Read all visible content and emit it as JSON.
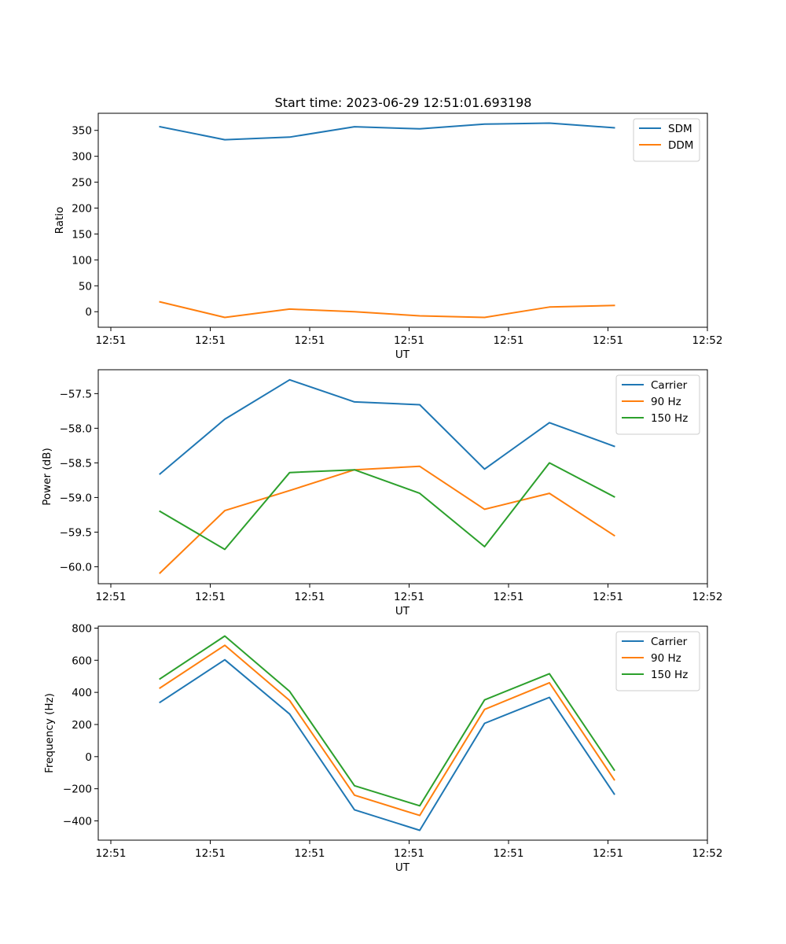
{
  "title": "Start time: 2023-06-29 12:51:01.693198",
  "chart_data": [
    {
      "type": "line",
      "xlabel": "UT",
      "ylabel": "Ratio",
      "xticks": [
        "12:51",
        "12:51",
        "12:51",
        "12:51",
        "12:51",
        "12:51",
        "12:52"
      ],
      "yticks": [
        "0",
        "50",
        "100",
        "150",
        "200",
        "250",
        "300",
        "350"
      ],
      "ylim": [
        -30,
        383
      ],
      "legend_position": "upper-right",
      "series": [
        {
          "name": "SDM",
          "color": "#1f77b4",
          "values": [
            357,
            332,
            337,
            357,
            353,
            362,
            364,
            355
          ]
        },
        {
          "name": "DDM",
          "color": "#ff7f0e",
          "values": [
            19,
            -11,
            5,
            0,
            -8,
            -11,
            9,
            12
          ]
        }
      ]
    },
    {
      "type": "line",
      "xlabel": "UT",
      "ylabel": "Power (dB)",
      "xticks": [
        "12:51",
        "12:51",
        "12:51",
        "12:51",
        "12:51",
        "12:51",
        "12:52"
      ],
      "yticks": [
        "−60.0",
        "−59.5",
        "−59.0",
        "−58.5",
        "−58.0",
        "−57.5"
      ],
      "ylim": [
        -60.245,
        -57.155
      ],
      "legend_position": "upper-right",
      "series": [
        {
          "name": "Carrier",
          "color": "#1f77b4",
          "values": [
            -58.66,
            -57.87,
            -57.3,
            -57.62,
            -57.66,
            -58.59,
            -57.92,
            -58.26
          ]
        },
        {
          "name": "90 Hz",
          "color": "#ff7f0e",
          "values": [
            -60.09,
            -59.19,
            -58.9,
            -58.6,
            -58.55,
            -59.17,
            -58.94,
            -59.55
          ]
        },
        {
          "name": "150 Hz",
          "color": "#2ca02c",
          "values": [
            -59.2,
            -59.75,
            -58.64,
            -58.6,
            -58.94,
            -59.71,
            -58.5,
            -58.99
          ]
        }
      ]
    },
    {
      "type": "line",
      "xlabel": "UT",
      "ylabel": "Frequency (Hz)",
      "xticks": [
        "12:51",
        "12:51",
        "12:51",
        "12:51",
        "12:51",
        "12:51",
        "12:52"
      ],
      "yticks": [
        "−400",
        "−200",
        "0",
        "200",
        "400",
        "600",
        "800"
      ],
      "ylim": [
        -520,
        812
      ],
      "legend_position": "upper-right",
      "series": [
        {
          "name": "Carrier",
          "color": "#1f77b4",
          "values": [
            338,
            603,
            265,
            -331,
            -459,
            207,
            369,
            -233
          ]
        },
        {
          "name": "90 Hz",
          "color": "#ff7f0e",
          "values": [
            427,
            693,
            349,
            -240,
            -366,
            294,
            460,
            -144
          ]
        },
        {
          "name": "150 Hz",
          "color": "#2ca02c",
          "values": [
            484,
            751,
            406,
            -181,
            -306,
            353,
            516,
            -83
          ]
        }
      ]
    }
  ]
}
